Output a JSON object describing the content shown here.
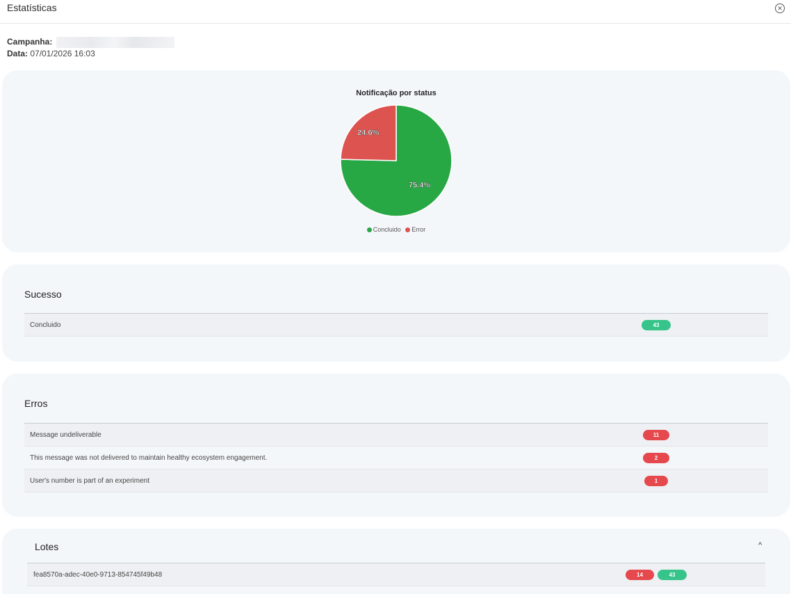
{
  "header": {
    "title": "Estatísticas"
  },
  "meta": {
    "campaign_label": "Campanha:",
    "date_label": "Data:",
    "date_value": "07/01/2026 16:03"
  },
  "chart_data": {
    "type": "pie",
    "title": "Notificação por status",
    "categories": [
      "Concluido",
      "Error"
    ],
    "values": [
      75.4,
      24.6
    ],
    "labels": [
      "75.4%",
      "24.6%"
    ],
    "colors": [
      "#28a745",
      "#dc5350"
    ],
    "legend_position": "bottom"
  },
  "success": {
    "title": "Sucesso",
    "rows": [
      {
        "label": "Concluido",
        "count": "43"
      }
    ]
  },
  "errors": {
    "title": "Erros",
    "rows": [
      {
        "label": "Message undeliverable",
        "count": "11"
      },
      {
        "label": "This message was not delivered to maintain healthy ecosystem engagement.",
        "count": "2"
      },
      {
        "label": "User's number is part of an experiment",
        "count": "1"
      }
    ]
  },
  "lotes": {
    "title": "Lotes",
    "rows": [
      {
        "id": "fea8570a-adec-40e0-9713-854745f49b48",
        "errors": "14",
        "success": "43"
      }
    ]
  }
}
